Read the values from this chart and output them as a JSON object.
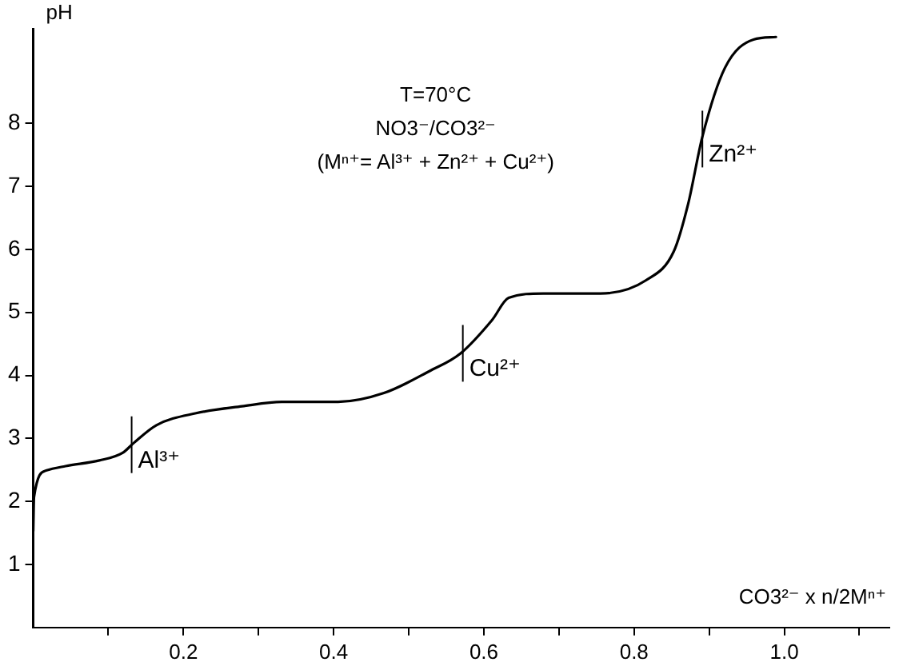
{
  "chart_data": {
    "type": "line",
    "xlabel": "CO3²⁻ x n/2Mⁿ⁺",
    "ylabel": "pH",
    "x": [
      0,
      0.001,
      0.017,
      0.043,
      0.088,
      0.119,
      0.134,
      0.164,
      0.217,
      0.278,
      0.331,
      0.406,
      0.467,
      0.528,
      0.569,
      0.611,
      0.633,
      0.679,
      0.755,
      0.816,
      0.853,
      0.872,
      0.891,
      0.921,
      0.959,
      0.989
    ],
    "series": [
      {
        "color": "#000000",
        "values": [
          1.53,
          2.07,
          2.49,
          2.56,
          2.65,
          2.77,
          2.93,
          3.21,
          3.4,
          3.51,
          3.58,
          3.58,
          3.72,
          4.07,
          4.35,
          4.88,
          5.23,
          5.3,
          5.3,
          5.51,
          5.97,
          6.72,
          7.79,
          8.88,
          9.33,
          9.37
        ]
      }
    ],
    "xlim": [
      0,
      1.14
    ],
    "ylim": [
      0,
      9.5
    ],
    "xticks": [
      {
        "value": 0.1,
        "label": null
      },
      0.2,
      {
        "value": 0.3,
        "label": null
      },
      0.4,
      {
        "value": 0.5,
        "label": null
      },
      0.6,
      {
        "value": 0.7,
        "label": null
      },
      0.8,
      {
        "value": 0.9,
        "label": null
      },
      {
        "value": 1,
        "label": "1.0"
      },
      {
        "value": 1.1,
        "label": null
      }
    ],
    "yticks": [
      1,
      2,
      3,
      4,
      5,
      6,
      7,
      8
    ],
    "annotations": [
      "T=70°C",
      "NO3⁻/CO3²⁻",
      "(Mⁿ⁺= Al³⁺ + Zn²⁺ + Cu²⁺)",
      {
        "text": "Al³⁺",
        "x": 0.131,
        "y": 2.9
      },
      {
        "text": "Cu²⁺",
        "x": 0.572,
        "y": 4.35
      },
      {
        "text": "Zn²⁺",
        "x": 0.891,
        "y": 7.75
      }
    ],
    "grid": false,
    "legend": false,
    "marker": "none",
    "line_style": "solid"
  }
}
